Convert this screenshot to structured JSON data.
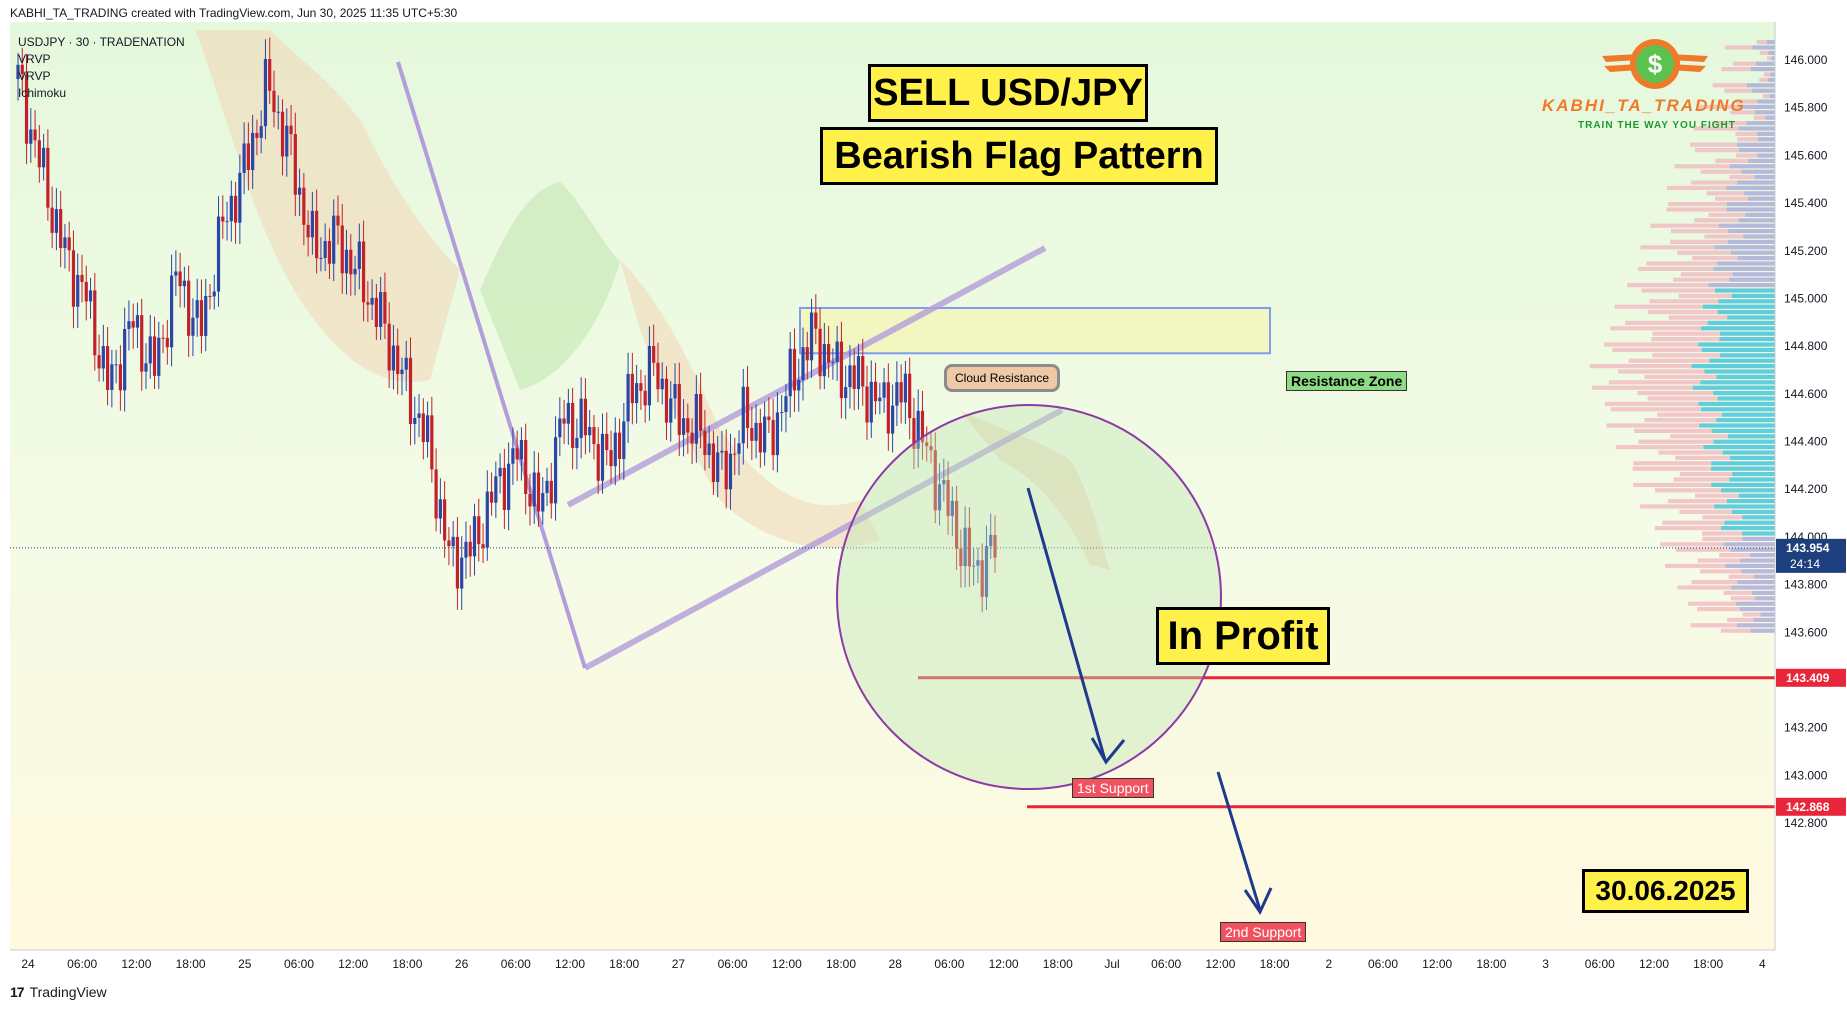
{
  "header": {
    "credit": "KABHI_TA_TRADING created with TradingView.com, Jun 30, 2025 11:35 UTC+5:30"
  },
  "legend": {
    "symbol": "USDJPY · 30 · TRADENATION",
    "indicators": [
      "VRVP",
      "VRVP",
      "Ichimoku"
    ]
  },
  "titles": {
    "line1": "SELL USD/JPY",
    "line2": "Bearish Flag Pattern",
    "profit": "In Profit",
    "date": "30.06.2025"
  },
  "labels": {
    "resistance_zone": "Resistance Zone",
    "cloud_resistance": "Cloud Resistance",
    "support1": "1st Support",
    "support2": "2nd Support"
  },
  "logo": {
    "name": "KABHI_TA_TRADING",
    "tagline": "TRAIN THE WAY YOU FIGHT",
    "symbol": "$"
  },
  "footer": {
    "brand": "TradingView"
  },
  "colors": {
    "bull": "#2a46a8",
    "bear": "#c2212a",
    "support": "#e8263a",
    "resistance_fill": "#f2f6c0",
    "resistance_border": "#7f9cf0",
    "channel": "#b39ddb",
    "arrow": "#1d3a8f",
    "current_price": "#1e3f7d"
  },
  "chart_data": {
    "type": "candlestick",
    "symbol": "USDJPY",
    "timeframe": "30",
    "y_axis": {
      "range": [
        142.7,
        146.1
      ],
      "ticks": [
        142.8,
        143.0,
        143.2,
        143.4,
        143.6,
        143.8,
        144.0,
        144.2,
        144.4,
        144.6,
        144.8,
        145.0,
        145.2,
        145.4,
        145.6,
        145.8,
        146.0
      ],
      "tick_labels": [
        "142.800",
        "143.000",
        "143.200",
        "143.400",
        "143.600",
        "143.800",
        "144.000",
        "144.200",
        "144.400",
        "144.600",
        "144.800",
        "145.000",
        "145.200",
        "145.400",
        "145.600",
        "145.800",
        "146.000"
      ]
    },
    "x_axis": {
      "tick_labels": [
        "24",
        "06:00",
        "12:00",
        "18:00",
        "25",
        "06:00",
        "12:00",
        "18:00",
        "26",
        "06:00",
        "12:00",
        "18:00",
        "27",
        "06:00",
        "12:00",
        "18:00",
        "28",
        "06:00",
        "12:00",
        "18:00",
        "Jul",
        "06:00",
        "12:00",
        "18:00",
        "2",
        "06:00",
        "12:00",
        "18:00",
        "3",
        "06:00",
        "12:00",
        "18:00",
        "4"
      ]
    },
    "current_price": {
      "value": 143.954,
      "label": "143.954",
      "countdown": "24:14"
    },
    "levels": [
      {
        "name": "1st Support",
        "value": 143.409,
        "label": "143.409"
      },
      {
        "name": "2nd Support",
        "value": 142.868,
        "label": "142.868"
      }
    ],
    "resistance_zone": {
      "low": 144.77,
      "high": 144.96
    },
    "flag_pole": {
      "from": 145.95,
      "to": 143.84
    },
    "ohlc_path": [
      145.92,
      145.55,
      145.2,
      145.0,
      144.62,
      144.9,
      144.7,
      145.1,
      144.85,
      145.3,
      145.55,
      145.9,
      145.6,
      145.2,
      145.25,
      145.1,
      144.9,
      144.65,
      144.4,
      143.9,
      143.95,
      144.2,
      144.35,
      144.1,
      144.5,
      144.45,
      144.3,
      144.6,
      144.7,
      144.5,
      144.45,
      144.25,
      144.5,
      144.4,
      144.65,
      144.85,
      144.7,
      144.65,
      144.55,
      144.6,
      144.35,
      144.1,
      143.85,
      143.95
    ]
  }
}
